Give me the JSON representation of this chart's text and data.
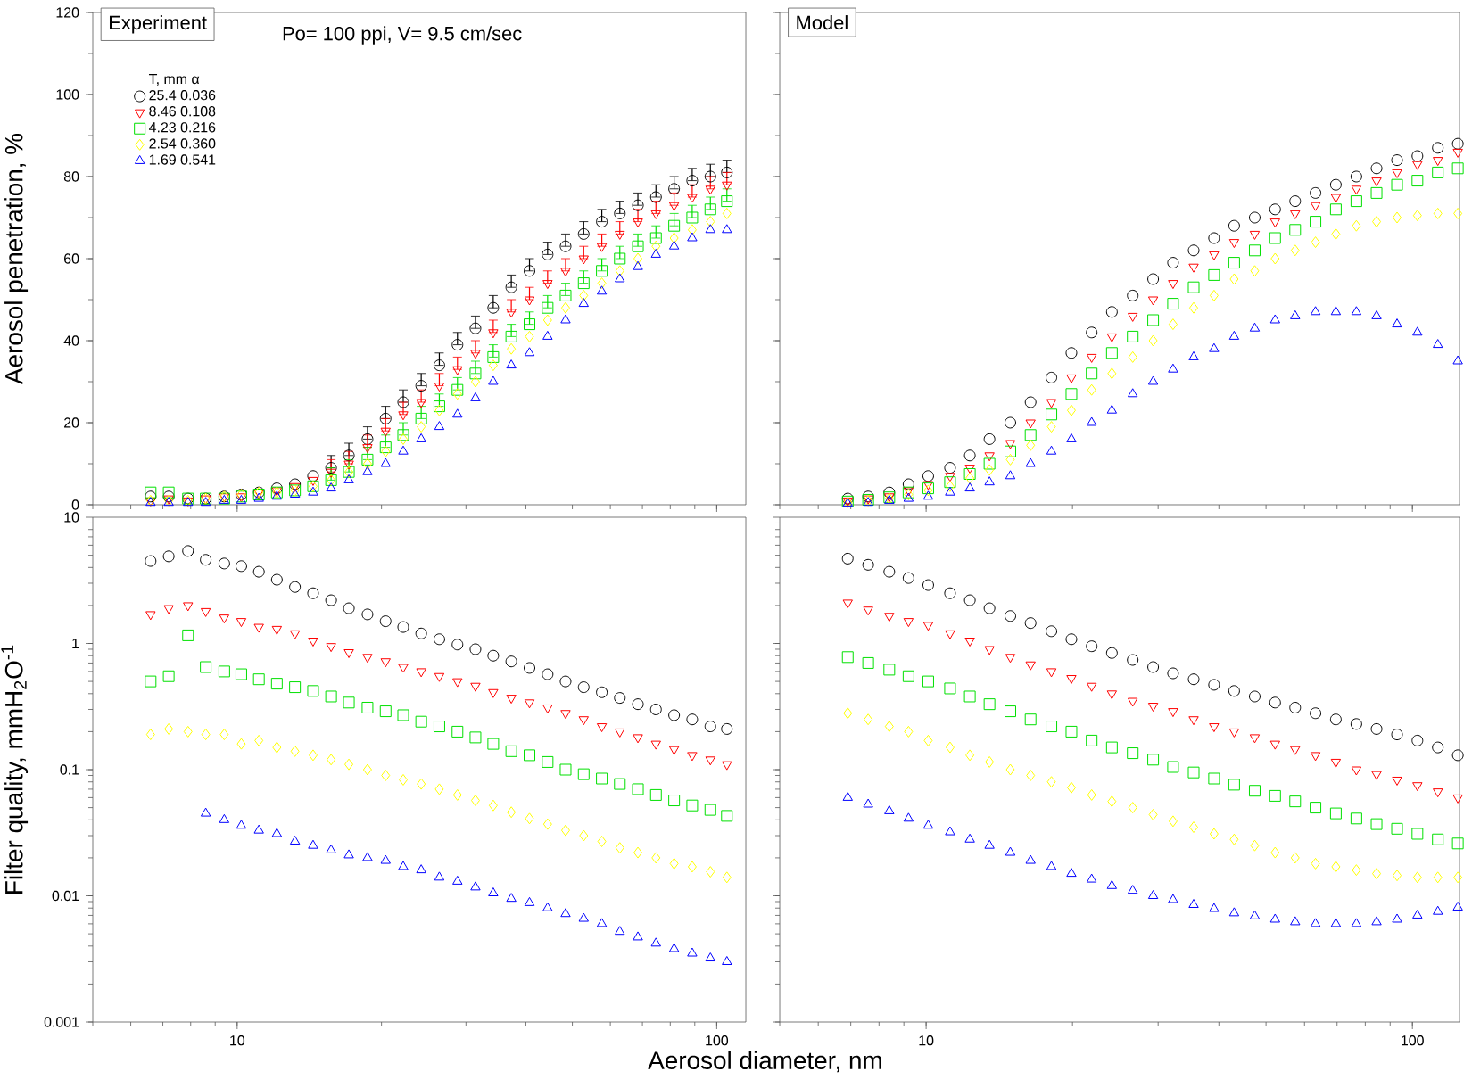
{
  "chart_data": [
    {
      "type": "scatter",
      "title": "Experiment",
      "subtitle": "Po= 100 ppi, V= 9.5 cm/sec",
      "ylabel": "Aerosol penetration, %",
      "legend_title": "T, mm α",
      "legend": "top left",
      "log": "x",
      "tick_labels": "y",
      "xlim": [
        5,
        115
      ],
      "ylim": [
        0,
        120
      ],
      "xticks": [
        10,
        100
      ],
      "yticks": [
        0,
        20,
        40,
        60,
        80,
        100,
        120
      ],
      "x": [
        6.6,
        7.2,
        7.9,
        8.6,
        9.4,
        10.2,
        11.1,
        12.1,
        13.2,
        14.4,
        15.7,
        17.1,
        18.7,
        20.4,
        22.2,
        24.2,
        26.4,
        28.8,
        31.4,
        34.2,
        37.3,
        40.7,
        44.4,
        48.4,
        52.8,
        57.6,
        62.8,
        68.5,
        74.7,
        81.5,
        88.9,
        97,
        105
      ],
      "series": [
        {
          "name": "25.4 0.036",
          "color": "#000000",
          "marker": "circle",
          "values": [
            2,
            2,
            1.5,
            1.5,
            2,
            2.5,
            3,
            4,
            5,
            7,
            9,
            12,
            16,
            21,
            25,
            29,
            34,
            39,
            43,
            48,
            53,
            57,
            61,
            63,
            66,
            69,
            71,
            73,
            75,
            77,
            79,
            80,
            81
          ],
          "errors": [
            null,
            null,
            null,
            null,
            null,
            null,
            null,
            null,
            null,
            null,
            [
              9,
              12
            ],
            [
              12,
              15
            ],
            [
              16,
              19
            ],
            [
              21,
              24
            ],
            [
              25,
              28
            ],
            [
              29,
              32
            ],
            [
              34,
              37
            ],
            [
              39,
              42
            ],
            [
              43,
              46
            ],
            [
              48,
              51
            ],
            [
              53,
              56
            ],
            [
              57,
              60
            ],
            [
              61,
              64
            ],
            [
              63,
              66
            ],
            [
              66,
              69
            ],
            [
              69,
              72
            ],
            [
              71,
              74
            ],
            [
              73,
              76
            ],
            [
              75,
              78
            ],
            [
              77,
              80
            ],
            [
              79,
              82
            ],
            [
              80,
              83
            ],
            [
              81,
              84
            ]
          ]
        },
        {
          "name": "8.46 0.108",
          "color": "#ff0000",
          "marker": "triangle",
          "values": [
            1,
            1.5,
            1,
            1.5,
            2,
            2,
            3,
            3.5,
            4.5,
            6,
            8,
            10,
            14,
            18,
            22,
            25,
            29,
            33,
            37,
            42,
            47,
            50,
            54,
            57,
            60,
            63,
            66,
            69,
            71,
            73,
            75,
            77,
            78
          ],
          "errors": [
            null,
            null,
            null,
            null,
            null,
            null,
            null,
            null,
            null,
            null,
            [
              8,
              11
            ],
            [
              10,
              13
            ],
            [
              14,
              17
            ],
            [
              18,
              21
            ],
            [
              22,
              25
            ],
            [
              25,
              28
            ],
            [
              29,
              32
            ],
            [
              33,
              36
            ],
            [
              37,
              40
            ],
            [
              42,
              45
            ],
            [
              47,
              50
            ],
            [
              50,
              53
            ],
            [
              54,
              57
            ],
            [
              57,
              60
            ],
            [
              60,
              63
            ],
            [
              63,
              66
            ],
            [
              66,
              69
            ],
            [
              69,
              72
            ],
            [
              71,
              74
            ],
            [
              73,
              76
            ],
            [
              75,
              78
            ],
            [
              77,
              80
            ],
            [
              78,
              81
            ]
          ]
        },
        {
          "name": "4.23 0.216",
          "color": "#00e000",
          "marker": "square",
          "values": [
            3,
            3,
            1.5,
            1.5,
            1.5,
            2,
            2.5,
            3,
            3.5,
            4.5,
            6,
            8,
            11,
            14,
            17,
            21,
            24,
            28,
            32,
            36,
            41,
            44,
            48,
            51,
            54,
            57,
            60,
            63,
            65,
            68,
            70,
            72,
            74
          ],
          "errors": [
            null,
            null,
            null,
            null,
            null,
            null,
            null,
            null,
            null,
            null,
            [
              6,
              9
            ],
            [
              8,
              11
            ],
            [
              11,
              14
            ],
            [
              14,
              17
            ],
            [
              17,
              20
            ],
            [
              21,
              24
            ],
            [
              24,
              27
            ],
            [
              28,
              31
            ],
            [
              32,
              35
            ],
            [
              36,
              39
            ],
            [
              41,
              44
            ],
            [
              44,
              47
            ],
            [
              48,
              51
            ],
            [
              51,
              54
            ],
            [
              54,
              57
            ],
            [
              57,
              60
            ],
            [
              60,
              63
            ],
            [
              63,
              66
            ],
            [
              65,
              68
            ],
            [
              68,
              71
            ],
            [
              70,
              73
            ],
            [
              72,
              75
            ],
            [
              74,
              77
            ]
          ]
        },
        {
          "name": "2.54 0.360",
          "color": "#ffff00",
          "marker": "diamond",
          "values": [
            1,
            1,
            1,
            1.5,
            2,
            2.5,
            3,
            3,
            3.5,
            4.5,
            6,
            8,
            10,
            13,
            16,
            19,
            23,
            27,
            30,
            34,
            38,
            41,
            45,
            48,
            51,
            54,
            57,
            60,
            63,
            65,
            67,
            69,
            71
          ]
        },
        {
          "name": "1.69 0.541",
          "color": "#0000ff",
          "marker": "triangle",
          "values": [
            0.5,
            0.5,
            0.5,
            0.5,
            1,
            1,
            1.5,
            2,
            2.5,
            3,
            4,
            6,
            8,
            10,
            13,
            16,
            19,
            22,
            26,
            30,
            34,
            37,
            41,
            45,
            49,
            52,
            55,
            58,
            61,
            63,
            65,
            67,
            67
          ]
        }
      ]
    },
    {
      "type": "scatter",
      "title": "Model",
      "log": "x",
      "tick_labels": false,
      "xlim": [
        5,
        125
      ],
      "ylim": [
        0,
        120
      ],
      "xticks": [
        10,
        100
      ],
      "yticks": [
        0,
        20,
        40,
        60,
        80,
        100,
        120
      ],
      "x": [
        6.9,
        7.6,
        8.4,
        9.2,
        10.1,
        11.2,
        12.3,
        13.5,
        14.9,
        16.4,
        18.1,
        19.9,
        21.9,
        24.1,
        26.6,
        29.3,
        32.2,
        35.5,
        39.1,
        43.0,
        47.4,
        52.2,
        57.4,
        63.2,
        69.6,
        76.7,
        84.4,
        93,
        102.4,
        112.8,
        124
      ],
      "series": [
        {
          "color": "#000000",
          "marker": "circle",
          "values": [
            1.5,
            2,
            3,
            5,
            7,
            9,
            12,
            16,
            20,
            25,
            31,
            37,
            42,
            47,
            51,
            55,
            59,
            62,
            65,
            68,
            70,
            72,
            74,
            76,
            78,
            80,
            82,
            84,
            85,
            87,
            88
          ]
        },
        {
          "color": "#ff0000",
          "marker": "triangle",
          "values": [
            1,
            1.5,
            2,
            3.5,
            5,
            7,
            9,
            12,
            15,
            20,
            25,
            31,
            36,
            41,
            46,
            50,
            54,
            58,
            61,
            64,
            66,
            69,
            71,
            73,
            75,
            77,
            79,
            81,
            83,
            84,
            86
          ]
        },
        {
          "color": "#00e000",
          "marker": "square",
          "values": [
            0.8,
            1.2,
            1.8,
            3,
            4,
            5.5,
            7.5,
            10,
            13,
            17,
            22,
            27,
            32,
            37,
            41,
            45,
            49,
            53,
            56,
            59,
            62,
            65,
            67,
            69,
            72,
            74,
            76,
            78,
            79,
            81,
            82
          ]
        },
        {
          "color": "#ffff00",
          "marker": "diamond",
          "values": [
            0.5,
            1,
            1.5,
            2.5,
            3.5,
            4.5,
            6.5,
            8.5,
            11,
            14.5,
            19,
            23,
            28,
            32,
            36,
            40,
            44,
            48,
            51,
            55,
            57,
            60,
            62,
            64,
            66,
            68,
            69,
            70,
            70.5,
            71,
            71
          ]
        },
        {
          "color": "#0000ff",
          "marker": "triangle",
          "values": [
            0.3,
            0.5,
            1,
            1.5,
            2,
            3,
            4,
            5.5,
            7,
            10,
            13,
            16,
            20,
            23,
            27,
            30,
            33,
            36,
            38,
            41,
            43,
            45,
            46,
            47,
            47,
            47,
            46,
            44,
            42,
            39,
            35
          ]
        }
      ]
    },
    {
      "type": "scatter",
      "ylabel": "Filter quality, mmH$_{2}$O$^{-1}$",
      "xlabel": "Aerosol diameter, nm",
      "log": "xy",
      "xlim": [
        5,
        115
      ],
      "ylim": [
        0.001,
        10
      ],
      "xticks": [
        10,
        100
      ],
      "yticks": [
        0.001,
        0.01,
        0.1,
        1,
        10
      ],
      "x": [
        6.6,
        7.2,
        7.9,
        8.6,
        9.4,
        10.2,
        11.1,
        12.1,
        13.2,
        14.4,
        15.7,
        17.1,
        18.7,
        20.4,
        22.2,
        24.2,
        26.4,
        28.8,
        31.4,
        34.2,
        37.3,
        40.7,
        44.4,
        48.4,
        52.8,
        57.6,
        62.8,
        68.5,
        74.7,
        81.5,
        88.9,
        97,
        105
      ],
      "series": [
        {
          "color": "#000000",
          "marker": "circle",
          "values": [
            4.5,
            4.9,
            5.4,
            4.6,
            4.3,
            4.1,
            3.7,
            3.2,
            2.8,
            2.5,
            2.2,
            1.9,
            1.7,
            1.5,
            1.35,
            1.2,
            1.08,
            0.98,
            0.9,
            0.8,
            0.72,
            0.64,
            0.57,
            0.5,
            0.45,
            0.41,
            0.37,
            0.33,
            0.3,
            0.27,
            0.25,
            0.22,
            0.21
          ]
        },
        {
          "color": "#ff0000",
          "marker": "triangle",
          "values": [
            1.7,
            1.9,
            2.0,
            1.8,
            1.6,
            1.5,
            1.35,
            1.3,
            1.2,
            1.05,
            0.95,
            0.85,
            0.78,
            0.72,
            0.65,
            0.6,
            0.55,
            0.5,
            0.46,
            0.41,
            0.37,
            0.34,
            0.31,
            0.28,
            0.25,
            0.22,
            0.2,
            0.18,
            0.16,
            0.145,
            0.13,
            0.12,
            0.11
          ]
        },
        {
          "color": "#00e000",
          "marker": "square",
          "values": [
            0.5,
            0.55,
            1.16,
            0.65,
            0.6,
            0.57,
            0.52,
            0.48,
            0.45,
            0.42,
            0.38,
            0.34,
            0.31,
            0.29,
            0.27,
            0.24,
            0.22,
            0.2,
            0.18,
            0.16,
            0.14,
            0.13,
            0.115,
            0.1,
            0.092,
            0.085,
            0.077,
            0.07,
            0.063,
            0.057,
            0.052,
            0.048,
            0.043
          ]
        },
        {
          "color": "#ffff00",
          "marker": "diamond",
          "values": [
            0.19,
            0.21,
            0.2,
            0.19,
            0.19,
            0.16,
            0.17,
            0.15,
            0.14,
            0.13,
            0.12,
            0.11,
            0.1,
            0.09,
            0.083,
            0.077,
            0.07,
            0.063,
            0.057,
            0.052,
            0.046,
            0.041,
            0.037,
            0.033,
            0.03,
            0.027,
            0.024,
            0.022,
            0.02,
            0.018,
            0.017,
            0.0155,
            0.014
          ]
        },
        {
          "color": "#0000ff",
          "marker": "triangle",
          "values": [
            null,
            null,
            null,
            0.045,
            0.04,
            0.036,
            0.033,
            0.031,
            0.027,
            0.025,
            0.023,
            0.021,
            0.02,
            0.019,
            0.017,
            0.016,
            0.014,
            0.013,
            0.0117,
            0.0105,
            0.0095,
            0.0088,
            0.008,
            0.0072,
            0.0066,
            0.006,
            0.0052,
            0.0047,
            0.0042,
            0.0038,
            0.0035,
            0.0032,
            0.003
          ]
        }
      ]
    },
    {
      "type": "scatter",
      "log": "xy",
      "tick_labels": "x",
      "xlim": [
        5,
        125
      ],
      "ylim": [
        0.001,
        10
      ],
      "xticks": [
        10,
        100
      ],
      "yticks": [
        0.001,
        0.01,
        0.1,
        1,
        10
      ],
      "x": [
        6.9,
        7.6,
        8.4,
        9.2,
        10.1,
        11.2,
        12.3,
        13.5,
        14.9,
        16.4,
        18.1,
        19.9,
        21.9,
        24.1,
        26.6,
        29.3,
        32.2,
        35.5,
        39.1,
        43.0,
        47.4,
        52.2,
        57.4,
        63.2,
        69.6,
        76.7,
        84.4,
        93,
        102.4,
        112.8,
        124
      ],
      "series": [
        {
          "color": "#000000",
          "marker": "circle",
          "values": [
            4.7,
            4.2,
            3.7,
            3.3,
            2.9,
            2.5,
            2.2,
            1.9,
            1.65,
            1.45,
            1.25,
            1.08,
            0.95,
            0.84,
            0.74,
            0.65,
            0.58,
            0.52,
            0.47,
            0.42,
            0.38,
            0.34,
            0.31,
            0.28,
            0.25,
            0.23,
            0.21,
            0.19,
            0.17,
            0.15,
            0.13
          ]
        },
        {
          "color": "#ff0000",
          "marker": "triangle",
          "values": [
            2.1,
            1.85,
            1.65,
            1.5,
            1.4,
            1.2,
            1.05,
            0.9,
            0.78,
            0.68,
            0.6,
            0.53,
            0.46,
            0.4,
            0.35,
            0.32,
            0.29,
            0.25,
            0.22,
            0.2,
            0.18,
            0.16,
            0.145,
            0.13,
            0.115,
            0.1,
            0.092,
            0.083,
            0.075,
            0.067,
            0.06
          ]
        },
        {
          "color": "#00e000",
          "marker": "square",
          "values": [
            0.78,
            0.7,
            0.62,
            0.55,
            0.5,
            0.44,
            0.38,
            0.33,
            0.29,
            0.25,
            0.22,
            0.2,
            0.17,
            0.15,
            0.135,
            0.12,
            0.105,
            0.095,
            0.085,
            0.076,
            0.068,
            0.062,
            0.056,
            0.05,
            0.045,
            0.041,
            0.037,
            0.034,
            0.031,
            0.028,
            0.026
          ]
        },
        {
          "color": "#ffff00",
          "marker": "diamond",
          "values": [
            0.28,
            0.25,
            0.22,
            0.2,
            0.17,
            0.15,
            0.13,
            0.115,
            0.1,
            0.09,
            0.08,
            0.072,
            0.063,
            0.056,
            0.05,
            0.044,
            0.039,
            0.035,
            0.031,
            0.028,
            0.025,
            0.022,
            0.02,
            0.018,
            0.017,
            0.016,
            0.015,
            0.0145,
            0.014,
            0.014,
            0.014
          ]
        },
        {
          "color": "#0000ff",
          "marker": "triangle",
          "values": [
            0.06,
            0.053,
            0.047,
            0.041,
            0.036,
            0.032,
            0.028,
            0.025,
            0.022,
            0.019,
            0.017,
            0.015,
            0.0135,
            0.012,
            0.011,
            0.01,
            0.0093,
            0.0085,
            0.0079,
            0.0073,
            0.0069,
            0.0065,
            0.0062,
            0.006,
            0.006,
            0.006,
            0.0062,
            0.0065,
            0.007,
            0.0075,
            0.0081
          ]
        }
      ]
    }
  ]
}
